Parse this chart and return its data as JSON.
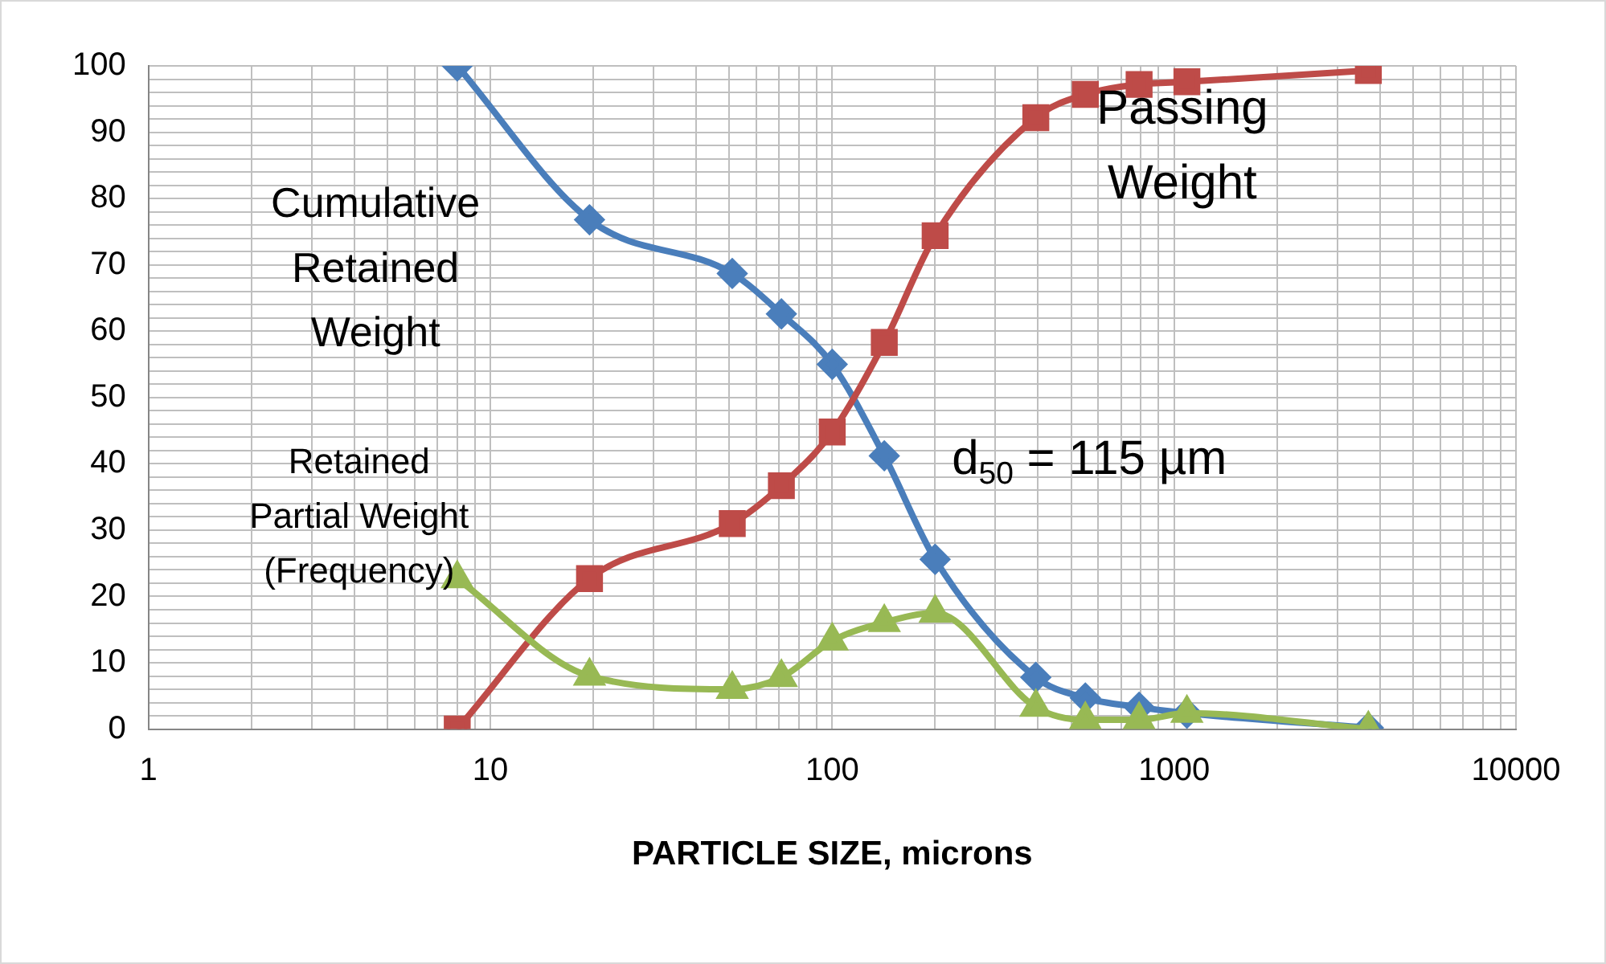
{
  "chart_data": {
    "type": "line",
    "xlabel": "PARTICLE SIZE, microns",
    "log": "x",
    "xlim": [
      1,
      10000
    ],
    "xticks": [
      1,
      {
        "value": 2,
        "label": null
      },
      {
        "value": 3,
        "label": null
      },
      {
        "value": 4,
        "label": null
      },
      {
        "value": 5,
        "label": null
      },
      {
        "value": 6,
        "label": null
      },
      {
        "value": 7,
        "label": null
      },
      {
        "value": 8,
        "label": null
      },
      {
        "value": 9,
        "label": null
      },
      10,
      {
        "value": 20,
        "label": null
      },
      {
        "value": 30,
        "label": null
      },
      {
        "value": 40,
        "label": null
      },
      {
        "value": 50,
        "label": null
      },
      {
        "value": 60,
        "label": null
      },
      {
        "value": 70,
        "label": null
      },
      {
        "value": 80,
        "label": null
      },
      {
        "value": 90,
        "label": null
      },
      100,
      {
        "value": 200,
        "label": null
      },
      {
        "value": 300,
        "label": null
      },
      {
        "value": 400,
        "label": null
      },
      {
        "value": 500,
        "label": null
      },
      {
        "value": 600,
        "label": null
      },
      {
        "value": 700,
        "label": null
      },
      {
        "value": 800,
        "label": null
      },
      {
        "value": 900,
        "label": null
      },
      1000,
      {
        "value": 2000,
        "label": null
      },
      {
        "value": 3000,
        "label": null
      },
      {
        "value": 4000,
        "label": null
      },
      {
        "value": 5000,
        "label": null
      },
      {
        "value": 6000,
        "label": null
      },
      {
        "value": 7000,
        "label": null
      },
      {
        "value": 8000,
        "label": null
      },
      {
        "value": 9000,
        "label": null
      },
      10000
    ],
    "ylim": [
      0,
      100
    ],
    "yticks": [
      0,
      {
        "value": 2,
        "label": null
      },
      {
        "value": 4,
        "label": null
      },
      {
        "value": 6,
        "label": null
      },
      {
        "value": 8,
        "label": null
      },
      10,
      {
        "value": 12,
        "label": null
      },
      {
        "value": 14,
        "label": null
      },
      {
        "value": 16,
        "label": null
      },
      {
        "value": 18,
        "label": null
      },
      20,
      {
        "value": 22,
        "label": null
      },
      {
        "value": 24,
        "label": null
      },
      {
        "value": 26,
        "label": null
      },
      {
        "value": 28,
        "label": null
      },
      30,
      {
        "value": 32,
        "label": null
      },
      {
        "value": 34,
        "label": null
      },
      {
        "value": 36,
        "label": null
      },
      {
        "value": 38,
        "label": null
      },
      40,
      {
        "value": 42,
        "label": null
      },
      {
        "value": 44,
        "label": null
      },
      {
        "value": 46,
        "label": null
      },
      {
        "value": 48,
        "label": null
      },
      50,
      {
        "value": 52,
        "label": null
      },
      {
        "value": 54,
        "label": null
      },
      {
        "value": 56,
        "label": null
      },
      {
        "value": 58,
        "label": null
      },
      60,
      {
        "value": 62,
        "label": null
      },
      {
        "value": 64,
        "label": null
      },
      {
        "value": 66,
        "label": null
      },
      {
        "value": 68,
        "label": null
      },
      70,
      {
        "value": 72,
        "label": null
      },
      {
        "value": 74,
        "label": null
      },
      {
        "value": 76,
        "label": null
      },
      {
        "value": 78,
        "label": null
      },
      80,
      {
        "value": 82,
        "label": null
      },
      {
        "value": 84,
        "label": null
      },
      {
        "value": 86,
        "label": null
      },
      {
        "value": 88,
        "label": null
      },
      90,
      {
        "value": 92,
        "label": null
      },
      {
        "value": 94,
        "label": null
      },
      {
        "value": 96,
        "label": null
      },
      {
        "value": 98,
        "label": null
      },
      100
    ],
    "grid": true,
    "legend": false,
    "x": [
      8,
      19.5,
      51,
      71,
      100,
      142,
      200,
      394,
      550,
      790,
      1090,
      3700
    ],
    "series": [
      {
        "color": "#4a7ebb",
        "marker": "diamond",
        "values": [
          100,
          76.8,
          68.7,
          62.6,
          55,
          41.2,
          25.6,
          7.8,
          4.7,
          3.3,
          2.4,
          0.2
        ]
      },
      {
        "color": "#be4b48",
        "marker": "square",
        "values": [
          0,
          22.7,
          31,
          36.7,
          44.8,
          58.3,
          74.4,
          92.2,
          95.7,
          97.2,
          97.6,
          99.3
        ]
      },
      {
        "color": "#98b954",
        "marker": "triangle",
        "values": [
          22.7,
          8,
          6,
          7.8,
          13.3,
          16.1,
          17.5,
          3.3,
          1.4,
          1.4,
          2.4,
          0
        ]
      }
    ],
    "annotations": [
      "Cumulative\nRetained\nWeight",
      "Passing\nWeight",
      "Retained\nPartial Weight\n(Frequency)",
      "d$_{50}$ = 115 µm"
    ]
  }
}
